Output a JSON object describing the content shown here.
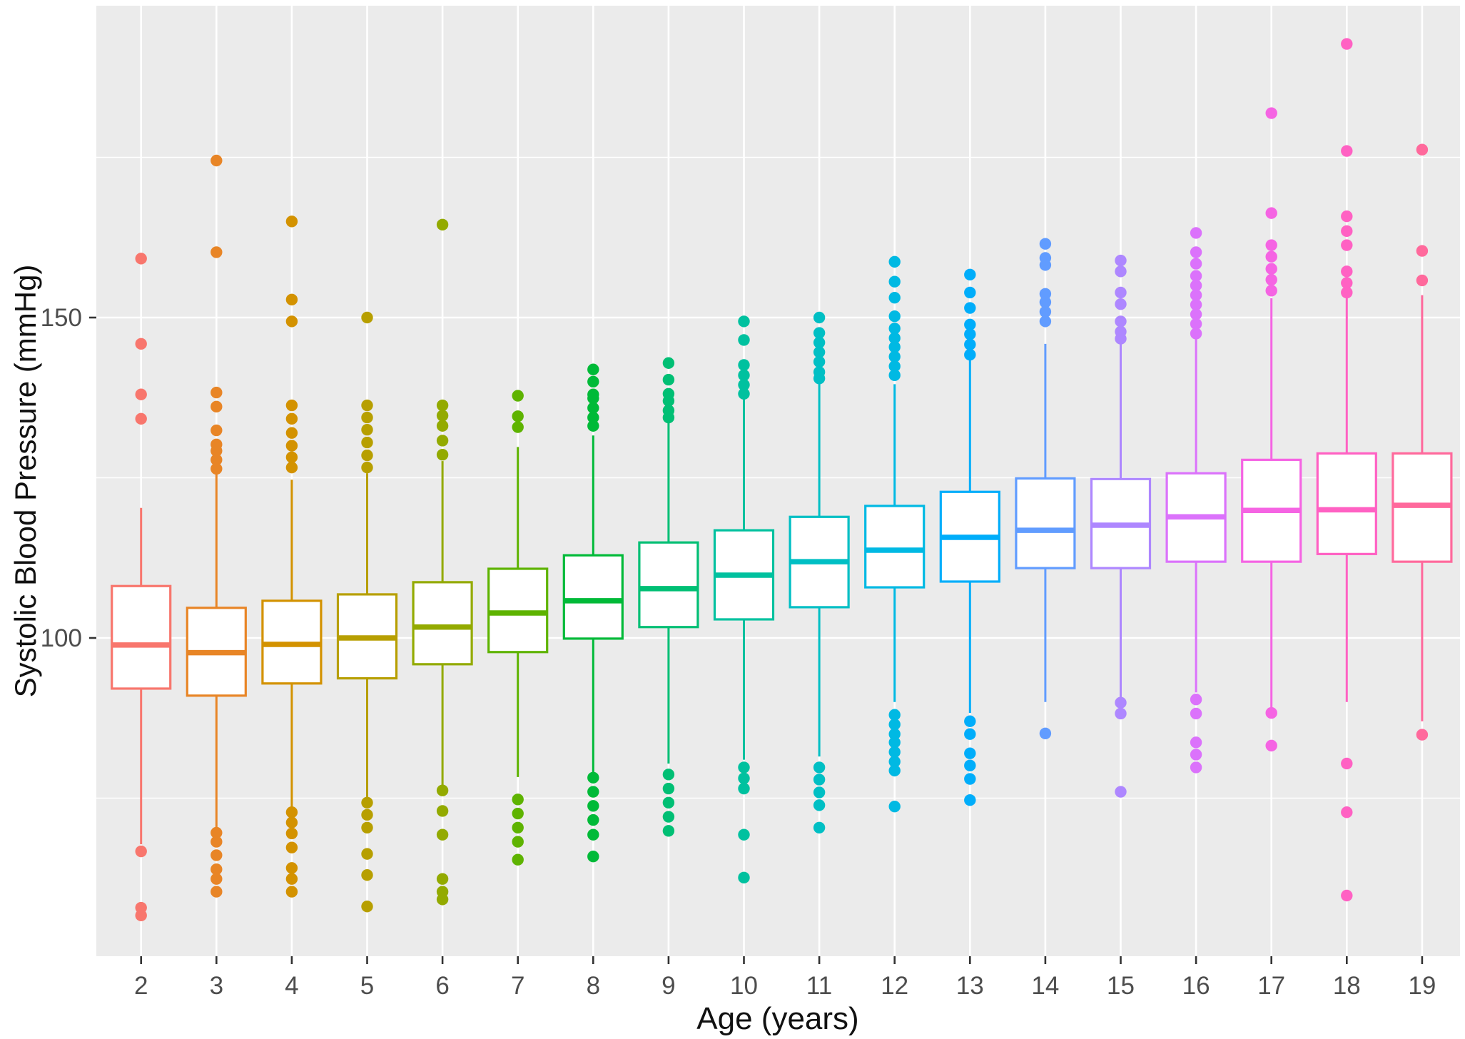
{
  "chart_data": {
    "type": "boxplot",
    "title": "",
    "xlabel": "Age (years)",
    "ylabel": "Systolic Blood Pressure (mmHg)",
    "categories": [
      "2",
      "3",
      "4",
      "5",
      "6",
      "7",
      "8",
      "9",
      "10",
      "11",
      "12",
      "13",
      "14",
      "15",
      "16",
      "17",
      "18",
      "19"
    ],
    "ylim": [
      50,
      199
    ],
    "yticks": [
      100,
      150
    ],
    "yticks_minor": [
      75,
      125,
      175
    ],
    "grid": "on",
    "legend_position": "none",
    "panel_bg": "#EBEBEB",
    "grid_color": "#FFFFFF",
    "tick_color": "#333333",
    "tick_label_color": "#4D4D4D",
    "series": [
      {
        "age": "2",
        "color": "#F8766D",
        "median": 98.9,
        "q1": 92.1,
        "q3": 108.1,
        "whisker_low": 67.8,
        "whisker_high": 120.3,
        "outliers_high": [
          159.2,
          145.9,
          138.0,
          134.2
        ],
        "outliers_low": [
          66.7,
          57.9,
          56.7
        ]
      },
      {
        "age": "3",
        "color": "#E88526",
        "median": 97.7,
        "q1": 91.0,
        "q3": 104.7,
        "whisker_low": 69.8,
        "whisker_high": 125.7,
        "outliers_high": [
          174.5,
          160.2,
          138.3,
          136.1,
          132.4,
          130.2,
          129.2,
          127.8,
          126.4
        ],
        "outliers_low": [
          69.6,
          68.2,
          66.1,
          63.9,
          62.4,
          60.4
        ]
      },
      {
        "age": "4",
        "color": "#D39200",
        "median": 99.0,
        "q1": 92.9,
        "q3": 105.8,
        "whisker_low": 73.5,
        "whisker_high": 124.7,
        "outliers_high": [
          165.0,
          152.8,
          149.4,
          136.3,
          134.2,
          132.0,
          130.0,
          128.2,
          126.6
        ],
        "outliers_low": [
          72.8,
          71.2,
          69.5,
          67.3,
          64.1,
          62.4,
          60.4
        ]
      },
      {
        "age": "5",
        "color": "#B79F00",
        "median": 100.0,
        "q1": 93.7,
        "q3": 106.8,
        "whisker_low": 74.8,
        "whisker_high": 125.7,
        "outliers_high": [
          150.0,
          136.3,
          134.4,
          132.5,
          130.5,
          128.5,
          126.6
        ],
        "outliers_low": [
          74.3,
          72.4,
          70.4,
          66.3,
          63.0,
          58.1
        ]
      },
      {
        "age": "6",
        "color": "#93AA00",
        "median": 101.7,
        "q1": 95.9,
        "q3": 108.7,
        "whisker_low": 76.1,
        "whisker_high": 127.6,
        "outliers_high": [
          164.5,
          136.3,
          134.7,
          133.1,
          130.8,
          128.6
        ],
        "outliers_low": [
          76.2,
          73.0,
          69.3,
          62.4,
          60.4,
          59.2
        ]
      },
      {
        "age": "7",
        "color": "#5EB300",
        "median": 103.9,
        "q1": 97.8,
        "q3": 110.8,
        "whisker_low": 78.3,
        "whisker_high": 129.8,
        "outliers_high": [
          137.8,
          134.6,
          132.9
        ],
        "outliers_low": [
          74.8,
          72.6,
          70.4,
          68.2,
          65.4
        ]
      },
      {
        "age": "8",
        "color": "#00BA38",
        "median": 105.8,
        "q1": 99.9,
        "q3": 112.9,
        "whisker_low": 79.0,
        "whisker_high": 131.6,
        "outliers_high": [
          141.9,
          140.0,
          138.0,
          137.4,
          135.9,
          134.4,
          133.1
        ],
        "outliers_low": [
          78.2,
          76.0,
          73.8,
          71.6,
          69.3,
          65.9
        ]
      },
      {
        "age": "9",
        "color": "#00BF74",
        "median": 107.7,
        "q1": 101.7,
        "q3": 114.9,
        "whisker_low": 80.4,
        "whisker_high": 133.9,
        "outliers_high": [
          142.9,
          140.3,
          138.1,
          137.0,
          135.5,
          134.4
        ],
        "outliers_low": [
          78.7,
          76.5,
          74.3,
          72.1,
          69.9
        ]
      },
      {
        "age": "10",
        "color": "#00C19F",
        "median": 109.8,
        "q1": 102.9,
        "q3": 116.8,
        "whisker_low": 81.0,
        "whisker_high": 137.8,
        "outliers_high": [
          149.4,
          146.5,
          142.6,
          141.0,
          139.5,
          138.1
        ],
        "outliers_low": [
          79.8,
          78.1,
          76.5,
          69.3,
          62.6
        ]
      },
      {
        "age": "11",
        "color": "#00BFC4",
        "median": 111.9,
        "q1": 104.8,
        "q3": 118.9,
        "whisker_low": 81.5,
        "whisker_high": 139.8,
        "outliers_high": [
          150.0,
          147.6,
          146.1,
          144.6,
          143.1,
          141.5,
          140.5
        ],
        "outliers_low": [
          79.8,
          77.9,
          75.9,
          73.9,
          70.4
        ]
      },
      {
        "age": "12",
        "color": "#00B9E3",
        "median": 113.7,
        "q1": 107.9,
        "q3": 120.6,
        "whisker_low": 90.0,
        "whisker_high": 139.6,
        "outliers_high": [
          158.7,
          155.6,
          153.1,
          150.2,
          148.3,
          146.8,
          145.4,
          143.9,
          142.4,
          141.0
        ],
        "outliers_low": [
          88.0,
          86.5,
          85.0,
          83.7,
          82.2,
          80.7,
          79.3,
          73.7
        ]
      },
      {
        "age": "13",
        "color": "#00ADFA",
        "median": 115.7,
        "q1": 108.8,
        "q3": 122.8,
        "whisker_low": 88.3,
        "whisker_high": 143.7,
        "outliers_high": [
          156.7,
          153.9,
          151.5,
          148.9,
          147.4,
          145.8,
          144.2
        ],
        "outliers_low": [
          87.0,
          85.0,
          82.0,
          80.1,
          78.0,
          74.7
        ]
      },
      {
        "age": "14",
        "color": "#619CFF",
        "median": 116.8,
        "q1": 110.9,
        "q3": 124.9,
        "whisker_low": 90.0,
        "whisker_high": 145.9,
        "outliers_high": [
          161.5,
          159.3,
          158.2,
          153.7,
          152.4,
          150.9,
          149.4
        ],
        "outliers_low": [
          85.1
        ]
      },
      {
        "age": "15",
        "color": "#AE87FF",
        "median": 117.6,
        "q1": 110.9,
        "q3": 124.8,
        "whisker_low": 90.5,
        "whisker_high": 146.1,
        "outliers_high": [
          158.9,
          157.2,
          153.9,
          152.1,
          149.4,
          147.8,
          146.7
        ],
        "outliers_low": [
          89.9,
          88.2,
          76.0
        ]
      },
      {
        "age": "16",
        "color": "#DB72FB",
        "median": 118.9,
        "q1": 111.9,
        "q3": 125.7,
        "whisker_low": 91.5,
        "whisker_high": 147.0,
        "outliers_high": [
          163.2,
          160.2,
          158.4,
          156.5,
          155.0,
          153.5,
          152.0,
          150.5,
          149.0,
          147.5
        ],
        "outliers_low": [
          90.4,
          88.2,
          83.7,
          81.8,
          79.8
        ]
      },
      {
        "age": "17",
        "color": "#F564E3",
        "median": 119.9,
        "q1": 111.9,
        "q3": 127.8,
        "whisker_low": 89.0,
        "whisker_high": 153.0,
        "outliers_high": [
          181.9,
          166.3,
          161.3,
          159.5,
          157.6,
          155.9,
          154.2
        ],
        "outliers_low": [
          88.3,
          83.2
        ]
      },
      {
        "age": "18",
        "color": "#FF61C3",
        "median": 120.0,
        "q1": 113.1,
        "q3": 128.8,
        "whisker_low": 90.0,
        "whisker_high": 153.3,
        "outliers_high": [
          192.7,
          176.0,
          165.8,
          163.5,
          161.3,
          157.2,
          155.4,
          153.9
        ],
        "outliers_low": [
          80.4,
          72.8,
          59.8
        ]
      },
      {
        "age": "19",
        "color": "#FF699C",
        "median": 120.7,
        "q1": 111.9,
        "q3": 128.8,
        "whisker_low": 87.0,
        "whisker_high": 153.5,
        "outliers_high": [
          176.2,
          160.4,
          155.8
        ],
        "outliers_low": [
          84.9
        ]
      }
    ]
  }
}
